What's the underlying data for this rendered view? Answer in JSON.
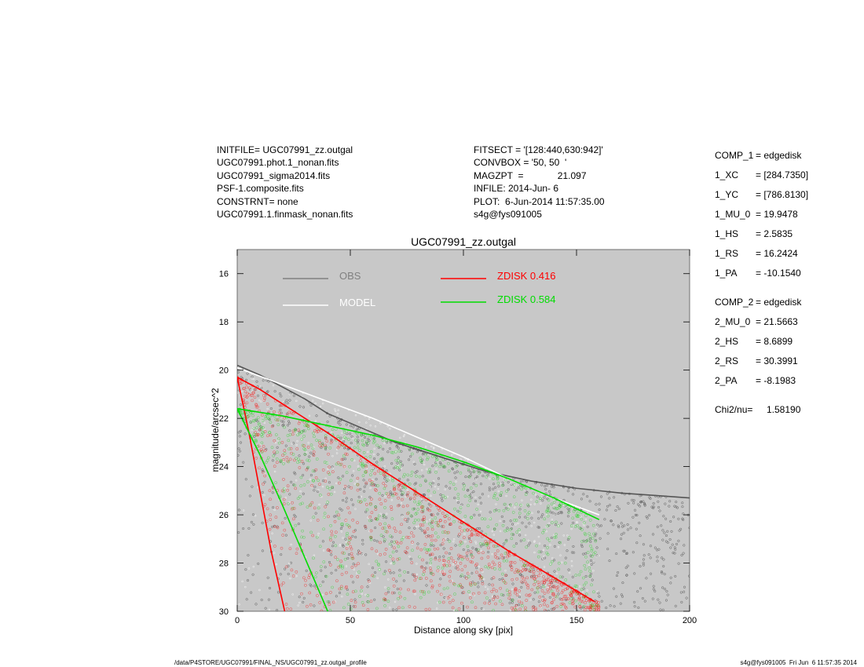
{
  "header": {
    "left": [
      "INITFILE= UGC07991_zz.outgal",
      "UGC07991.phot.1_nonan.fits",
      "UGC07991_sigma2014.fits",
      "PSF-1.composite.fits",
      "CONSTRNT= none",
      "UGC07991.1.finmask_nonan.fits"
    ],
    "middle": [
      "FITSECT = '[128:440,630:942]'",
      "CONVBOX = '50, 50  '",
      "MAGZPT  =             21.097",
      "INFILE: 2014-Jun- 6",
      "PLOT:  6-Jun-2014 11:57:35.00",
      "s4g@fys091005"
    ]
  },
  "components": [
    {
      "key": "COMP_1",
      "value": "= edgedisk"
    },
    {
      "key": "1_XC",
      "value": "= [284.7350]"
    },
    {
      "key": "1_YC",
      "value": "= [786.8130]"
    },
    {
      "key": "1_MU_0",
      "value": "= 19.9478"
    },
    {
      "key": "1_HS",
      "value": "= 2.5835"
    },
    {
      "key": "1_RS",
      "value": "= 16.2424"
    },
    {
      "key": "1_PA",
      "value": "= -10.1540"
    },
    {
      "key": "COMP_2",
      "value": "= edgedisk"
    },
    {
      "key": "2_MU_0",
      "value": "= 21.5663"
    },
    {
      "key": "2_HS",
      "value": "= 8.6899"
    },
    {
      "key": "2_RS",
      "value": "= 30.3991"
    },
    {
      "key": "2_PA",
      "value": "= -8.1983"
    },
    {
      "key": "Chi2/nu=",
      "value": "1.58190"
    }
  ],
  "footer": {
    "path": "/data/P4STORE/UGC07991/FINAL_NS/UGC07991_zz.outgal_profile",
    "stamp": "s4g@fys091005  Fri Jun  6 11:57:35 2014"
  },
  "colors": {
    "plot_bg": "#c8c8c8",
    "obs": "#808080",
    "model": "#ffffff",
    "zdisk1": "#ff0000",
    "zdisk2": "#00dd00"
  },
  "chart_data": {
    "type": "scatter",
    "title": "UGC07991_zz.outgal",
    "xlabel": "Distance along sky [pix]",
    "ylabel": "magnitude/arcsec^2",
    "xlim": [
      0,
      200
    ],
    "ylim": [
      30,
      15
    ],
    "y_inverted": true,
    "xticks": [
      0,
      50,
      100,
      150,
      200
    ],
    "yticks": [
      16,
      18,
      20,
      22,
      24,
      26,
      28,
      30
    ],
    "legend_placement": "top-left",
    "legend": [
      {
        "label": "OBS",
        "value": "",
        "color": "#808080"
      },
      {
        "label": "MODEL",
        "value": "",
        "color": "#ffffff"
      },
      {
        "label": "ZDISK",
        "value": "0.416",
        "color": "#ff0000"
      },
      {
        "label": "ZDISK",
        "value": "0.584",
        "color": "#00dd00"
      }
    ],
    "series": [
      {
        "name": "OBS",
        "trend_x": [
          0,
          10,
          20,
          30,
          40,
          55,
          70,
          90,
          110,
          130,
          150,
          170,
          185,
          200
        ],
        "trend_y": [
          19.8,
          20.2,
          20.7,
          21.2,
          21.8,
          22.4,
          23.0,
          23.6,
          24.2,
          24.6,
          24.9,
          25.1,
          25.2,
          25.3
        ],
        "x_range": [
          0,
          200
        ],
        "y_range": [
          19.7,
          30
        ]
      },
      {
        "name": "MODEL",
        "trend_x": [
          0,
          20,
          40,
          60,
          80,
          100,
          120,
          140,
          160
        ],
        "trend_y": [
          19.9,
          20.6,
          21.3,
          22.0,
          22.8,
          23.6,
          24.5,
          25.3,
          26.0
        ],
        "x_range": [
          0,
          160
        ],
        "y_range": [
          19.9,
          30
        ]
      },
      {
        "name": "ZDISK 0.416",
        "trend_x": [
          0,
          10,
          20,
          30,
          40,
          60,
          80,
          100,
          120,
          140,
          158
        ],
        "trend_y": [
          20.3,
          20.8,
          21.4,
          22.0,
          22.6,
          23.9,
          25.1,
          26.3,
          27.5,
          28.6,
          29.6
        ],
        "lower_x": [
          0,
          5,
          10,
          15,
          21
        ],
        "lower_y": [
          20.3,
          22.5,
          25.0,
          27.5,
          30.0
        ],
        "x_range": [
          0,
          160
        ],
        "y_range": [
          20.3,
          30
        ]
      },
      {
        "name": "ZDISK 0.584",
        "trend_x": [
          0,
          20,
          40,
          60,
          80,
          100,
          120,
          140,
          160
        ],
        "trend_y": [
          21.6,
          21.9,
          22.3,
          22.7,
          23.2,
          23.8,
          24.5,
          25.3,
          26.2
        ],
        "lower_x": [
          0,
          10,
          20,
          30,
          40
        ],
        "lower_y": [
          21.6,
          23.5,
          25.6,
          27.8,
          30.0
        ],
        "x_range": [
          0,
          160
        ],
        "y_range": [
          21.6,
          30
        ]
      }
    ]
  }
}
